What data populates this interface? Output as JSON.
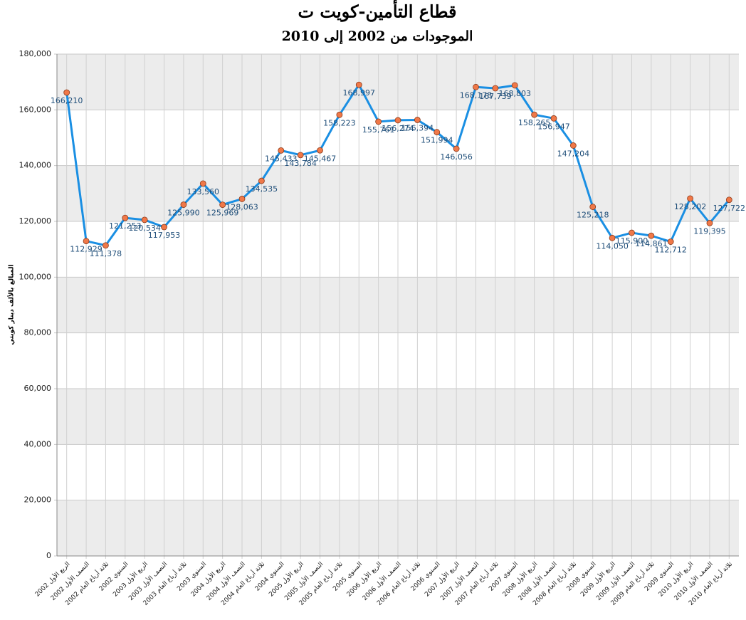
{
  "chart_data": {
    "type": "line",
    "title": "قطاع التأمين-كويت ت",
    "subtitle": "الموجودات من 2002 إلى 2010",
    "y_label": "المبالغ بالألف دينار كويتي",
    "categories": [
      "الربع الأول 2002",
      "النصف الأول 2002",
      "ثلاثة أرباع العام 2002",
      "السنوي 2002",
      "الربع الأول 2003",
      "النصف الأول 2003",
      "ثلاثة أرباع العام 2003",
      "السنوي 2003",
      "الربع الأول 2004",
      "النصف الأول 2004",
      "ثلاثة أرباع العام 2004",
      "السنوي 2004",
      "الربع الأول 2005",
      "النصف الأول 2005",
      "ثلاثة أرباع العام 2005",
      "السنوي 2005",
      "الربع الأول 2006",
      "النصف الأول 2006",
      "ثلاثة أرباع العام 2006",
      "السنوي 2006",
      "الربع الأول 2007",
      "النصف الأول 2007",
      "ثلاثة أرباع العام 2007",
      "السنوي 2007",
      "الربع الأول 2008",
      "النصف الأول 2008",
      "ثلاثة أرباع العام 2008",
      "السنوي 2008",
      "الربع الأول 2009",
      "النصف الأول 2009",
      "ثلاثة أرباع العام 2009",
      "السنوي 2009",
      "الربع الأول 2010",
      "النصف الأول 2010",
      "ثلاثة أرباع العام 2010"
    ],
    "series": [
      {
        "color": "#1a8fe3",
        "marker_color": "#f07848",
        "values": [
          166210,
          112929,
          111378,
          121253,
          120534,
          117953,
          125990,
          133560,
          125969,
          128063,
          134535,
          145433,
          143784,
          145467,
          158223,
          168997,
          155761,
          156274,
          156394,
          151994,
          146056,
          168178,
          167739,
          168803,
          158265,
          156947,
          147204,
          125218,
          114050,
          115900,
          114861,
          112712,
          128202,
          119395,
          127722
        ],
        "value_labels": [
          "166,210",
          "112,929",
          "111,378",
          "121,253",
          "120,534",
          "117,953",
          "125,990",
          "133,560",
          "125,969",
          "128,063",
          "134,535",
          "145,433",
          "143,784",
          "145,467",
          "158,223",
          "168,997",
          "155,761",
          "156,274",
          "156,394",
          "151,994",
          "146,056",
          "168,178",
          "167,739",
          "168,803",
          "158,265",
          "156,947",
          "147,204",
          "125,218",
          "114,050",
          "115,900",
          "114,861",
          "112,712",
          "128,202",
          "119,395",
          "127,722"
        ]
      }
    ],
    "ylim": [
      0,
      180000
    ],
    "yticks": [
      0,
      {
        "value": 20000,
        "label": "20,000"
      },
      {
        "value": 40000,
        "label": "40,000"
      },
      {
        "value": 60000,
        "label": "60,000"
      },
      {
        "value": 80000,
        "label": "80,000"
      },
      {
        "value": 100000,
        "label": "100,000"
      },
      {
        "value": 120000,
        "label": "120,000"
      },
      {
        "value": 140000,
        "label": "140,000"
      },
      {
        "value": 160000,
        "label": "160,000"
      },
      {
        "value": 180000,
        "label": "180,000"
      }
    ],
    "grid": true
  }
}
